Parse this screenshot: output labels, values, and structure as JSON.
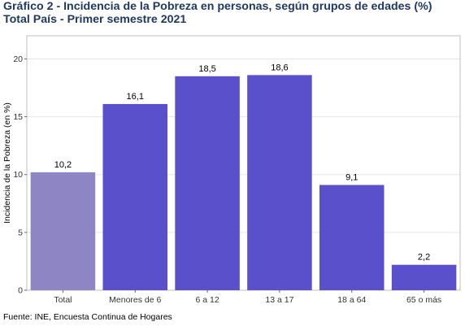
{
  "title_line1": "Gráfico 2 - Incidencia de la Pobreza en personas, según grupos de edades (%)",
  "title_line2": "Total País - Primer semestre 2021",
  "source": "Fuente: INE, Encuesta Continua de Hogares",
  "chart_data": {
    "type": "bar",
    "title": "Gráfico 2 - Incidencia de la Pobreza en personas, según grupos de edades (%)",
    "subtitle": "Total País - Primer semestre 2021",
    "xlabel": "",
    "ylabel": "Incidencia de la Pobreza (en %)",
    "categories": [
      "Total",
      "Menores de 6",
      "6 a 12",
      "13 a 17",
      "18 a 64",
      "65 o más"
    ],
    "values": [
      10.2,
      16.1,
      18.5,
      18.6,
      9.1,
      2.2
    ],
    "value_labels": [
      "10,2",
      "16,1",
      "18,5",
      "18,6",
      "9,1",
      "2,2"
    ],
    "ylim": [
      0,
      22
    ],
    "yticks": [
      0,
      5,
      10,
      15,
      20
    ],
    "grid": true,
    "legend": "none",
    "colors": {
      "total": "#8e86c4",
      "groups": "#5a50cc",
      "grid": "#e6e6e6",
      "panel_border": "#bfbfbf"
    }
  }
}
